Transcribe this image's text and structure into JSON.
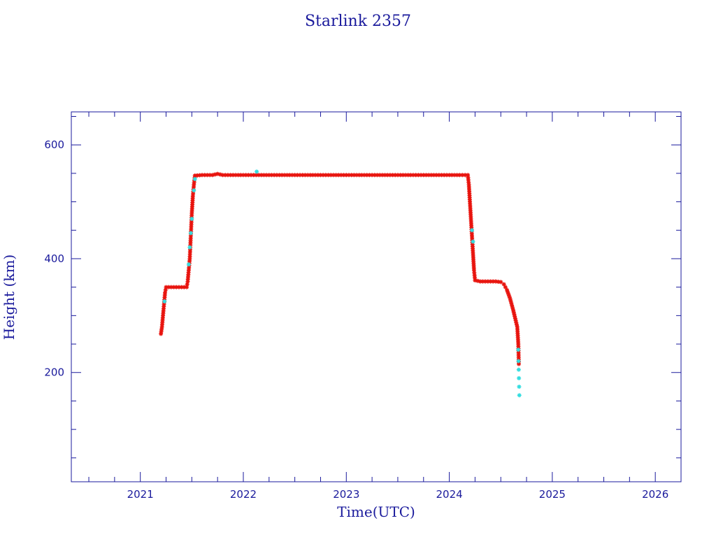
{
  "chart_data": {
    "type": "scatter",
    "title": "Starlink 2357",
    "xlabel": "Time(UTC)",
    "ylabel": "Height (km)",
    "xlim": [
      2020.33,
      2026.25
    ],
    "ylim": [
      8,
      658
    ],
    "x_ticks": [
      {
        "value": 2021,
        "label": "2021"
      },
      {
        "value": 2022,
        "label": "2022"
      },
      {
        "value": 2023,
        "label": "2023"
      },
      {
        "value": 2024,
        "label": "2024"
      },
      {
        "value": 2025,
        "label": "2025"
      },
      {
        "value": 2026,
        "label": "2026"
      }
    ],
    "x_minor_step": 0.25,
    "y_ticks": [
      {
        "value": 200,
        "label": "200"
      },
      {
        "value": 400,
        "label": "400"
      },
      {
        "value": 600,
        "label": "600"
      }
    ],
    "y_minor_step": 50,
    "grid": false,
    "colors": {
      "axis": "#1a1a9c",
      "primary_points": "#e8140e",
      "secondary_points": "#33dde0",
      "connector": "#333333"
    },
    "series": [
      {
        "values": [
          [
            2021.2,
            268
          ],
          [
            2021.21,
            280
          ],
          [
            2021.22,
            300
          ],
          [
            2021.23,
            320
          ],
          [
            2021.24,
            340
          ],
          [
            2021.25,
            350
          ],
          [
            2021.3,
            350
          ],
          [
            2021.35,
            350
          ],
          [
            2021.4,
            350
          ],
          [
            2021.45,
            350
          ],
          [
            2021.46,
            360
          ],
          [
            2021.47,
            380
          ],
          [
            2021.48,
            400
          ],
          [
            2021.49,
            440
          ],
          [
            2021.5,
            480
          ],
          [
            2021.51,
            510
          ],
          [
            2021.52,
            530
          ],
          [
            2021.53,
            546
          ],
          [
            2021.6,
            547
          ],
          [
            2021.7,
            547
          ],
          [
            2021.75,
            549
          ],
          [
            2021.8,
            547
          ],
          [
            2021.9,
            547
          ],
          [
            2022.0,
            547
          ],
          [
            2022.1,
            547
          ],
          [
            2022.2,
            547
          ],
          [
            2022.3,
            547
          ],
          [
            2022.4,
            547
          ],
          [
            2022.5,
            547
          ],
          [
            2022.6,
            547
          ],
          [
            2022.7,
            547
          ],
          [
            2022.8,
            547
          ],
          [
            2022.9,
            547
          ],
          [
            2023.0,
            547
          ],
          [
            2023.1,
            547
          ],
          [
            2023.2,
            547
          ],
          [
            2023.3,
            547
          ],
          [
            2023.4,
            547
          ],
          [
            2023.5,
            547
          ],
          [
            2023.6,
            547
          ],
          [
            2023.7,
            547
          ],
          [
            2023.8,
            547
          ],
          [
            2023.9,
            547
          ],
          [
            2024.0,
            547
          ],
          [
            2024.1,
            547
          ],
          [
            2024.18,
            547
          ],
          [
            2024.19,
            530
          ],
          [
            2024.2,
            500
          ],
          [
            2024.21,
            470
          ],
          [
            2024.22,
            440
          ],
          [
            2024.23,
            410
          ],
          [
            2024.24,
            380
          ],
          [
            2024.25,
            362
          ],
          [
            2024.3,
            360
          ],
          [
            2024.35,
            360
          ],
          [
            2024.4,
            360
          ],
          [
            2024.45,
            360
          ],
          [
            2024.5,
            359
          ],
          [
            2024.53,
            355
          ],
          [
            2024.56,
            345
          ],
          [
            2024.59,
            330
          ],
          [
            2024.62,
            310
          ],
          [
            2024.64,
            295
          ],
          [
            2024.66,
            280
          ],
          [
            2024.67,
            250
          ],
          [
            2024.675,
            215
          ]
        ]
      },
      {
        "values": [
          [
            2021.235,
            325
          ],
          [
            2021.47,
            390
          ],
          [
            2021.48,
            420
          ],
          [
            2021.49,
            445
          ],
          [
            2021.5,
            470
          ],
          [
            2021.52,
            520
          ],
          [
            2021.53,
            540
          ],
          [
            2022.13,
            553
          ],
          [
            2024.22,
            450
          ],
          [
            2024.23,
            430
          ],
          [
            2024.67,
            240
          ],
          [
            2024.672,
            220
          ],
          [
            2024.674,
            205
          ],
          [
            2024.676,
            190
          ],
          [
            2024.678,
            175
          ],
          [
            2024.68,
            160
          ]
        ]
      }
    ]
  }
}
